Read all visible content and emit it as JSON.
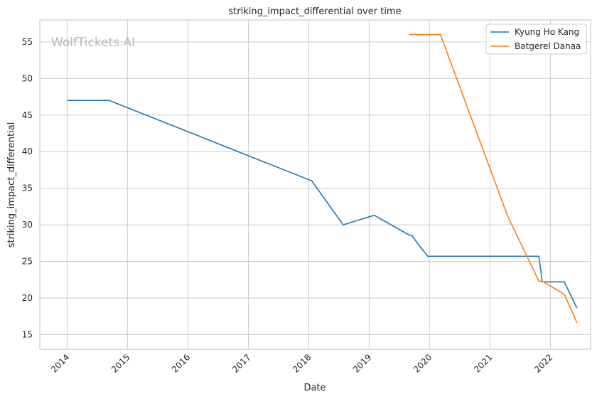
{
  "chart_data": {
    "type": "line",
    "title": "striking_impact_differential over time",
    "xlabel": "Date",
    "ylabel": "striking_impact_differential",
    "watermark": "WolfTickets.AI",
    "x_is_date": true,
    "xlim": [
      "2013-07-20",
      "2022-09-01"
    ],
    "ylim": [
      13.0,
      58.0
    ],
    "x_ticks": [
      "2014-01-01",
      "2015-01-01",
      "2016-01-01",
      "2017-01-01",
      "2018-01-01",
      "2019-01-01",
      "2020-01-01",
      "2021-01-01",
      "2022-01-01"
    ],
    "x_tick_labels": [
      "2014",
      "2015",
      "2016",
      "2017",
      "2018",
      "2019",
      "2020",
      "2021",
      "2022"
    ],
    "y_ticks": [
      15,
      20,
      25,
      30,
      35,
      40,
      45,
      50,
      55
    ],
    "y_tick_labels": [
      "15",
      "20",
      "25",
      "30",
      "35",
      "40",
      "45",
      "50",
      "55"
    ],
    "grid": true,
    "legend_position": "top-right",
    "series": [
      {
        "name": "Kyung Ho Kang",
        "color": "#1f77b4",
        "x": [
          "2014-01-01",
          "2014-09-13",
          "2018-01-20",
          "2018-07-28",
          "2019-02-01",
          "2019-08-31",
          "2019-09-14",
          "2019-11-09",
          "2019-12-21",
          "2021-10-23",
          "2021-11-13",
          "2022-03-26",
          "2022-06-11"
        ],
        "y": [
          47.0,
          47.0,
          36.0,
          30.0,
          31.3,
          28.6,
          28.6,
          26.9,
          25.7,
          25.7,
          22.2,
          22.2,
          18.6
        ]
      },
      {
        "name": "Batgerel Danaa",
        "color": "#ff7f0e",
        "x": [
          "2019-08-31",
          "2020-03-07",
          "2021-04-17",
          "2021-10-23",
          "2021-11-13",
          "2022-03-26",
          "2022-06-11"
        ],
        "y": [
          56.0,
          56.0,
          31.2,
          22.3,
          22.3,
          20.5,
          16.6
        ]
      }
    ]
  }
}
